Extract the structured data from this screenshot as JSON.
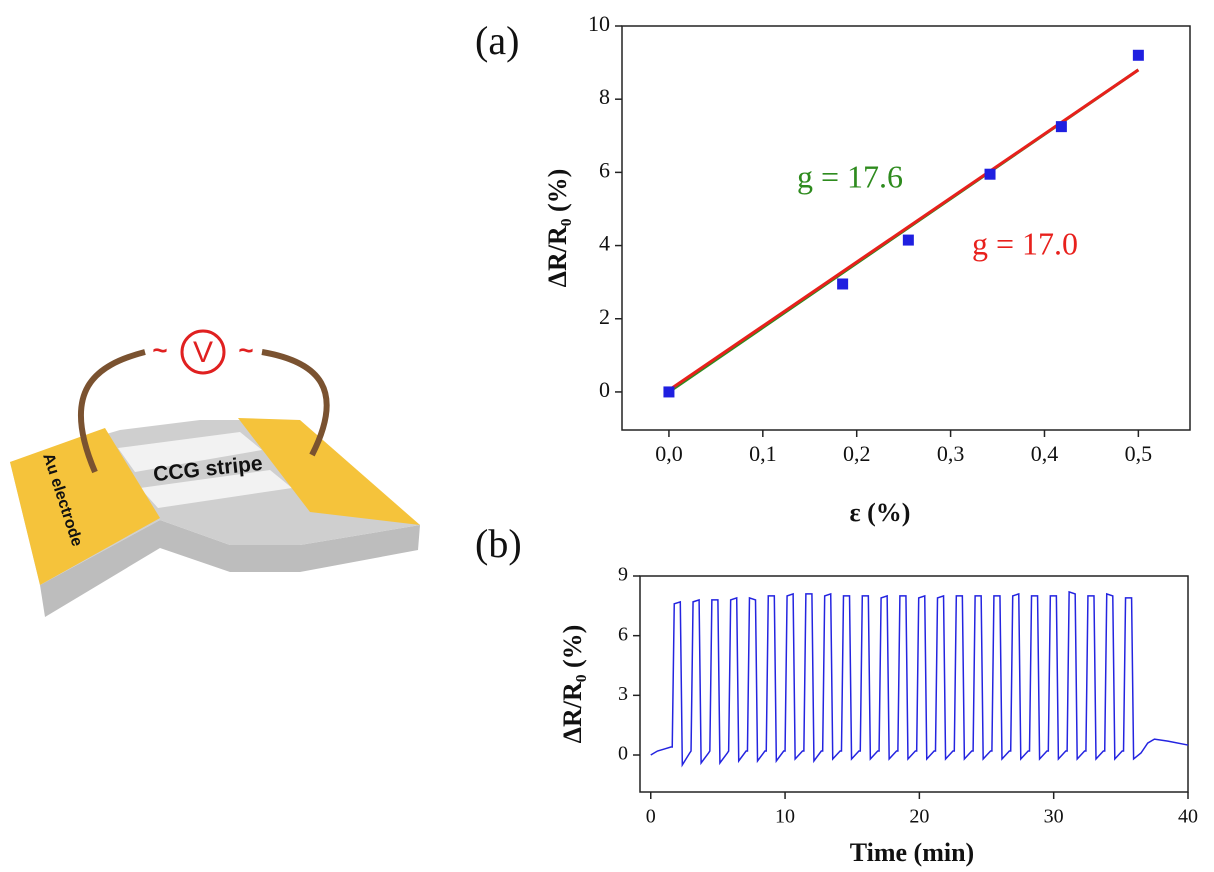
{
  "diagram": {
    "tilde_left": "~",
    "meter": "V",
    "tilde_right": "~",
    "electrode": "Au electrode",
    "stripe": "CCG stripe"
  },
  "chart_data": [
    {
      "type": "scatter",
      "panel_label": "(a)",
      "xlabel": "ε (%)",
      "ylabel": "ΔR/R₀ (%)",
      "x": [
        0,
        0.185,
        0.255,
        0.342,
        0.418,
        0.5
      ],
      "series": [
        {
          "color": "#1f1fe0",
          "values": [
            0,
            2.95,
            4.15,
            5.95,
            7.25,
            9.2
          ]
        }
      ],
      "fits": [
        {
          "color": "#2e8b1e",
          "x": [
            0,
            0.5
          ],
          "values": [
            0,
            8.8
          ]
        },
        {
          "color": "#e8201c",
          "x": [
            0,
            0.5
          ],
          "values": [
            0.05,
            8.8
          ]
        }
      ],
      "annotations": [
        {
          "text": "g = 17.6",
          "color": "#2e8b1e"
        },
        {
          "text": "g = 17.0",
          "color": "#e8201c"
        }
      ],
      "xlim": [
        -0.05,
        0.555
      ],
      "ylim": [
        -1.04,
        10
      ],
      "xticks": [
        {
          "value": 0,
          "label": "0,0"
        },
        {
          "value": 0.1,
          "label": "0,1"
        },
        {
          "value": 0.2,
          "label": "0,2"
        },
        {
          "value": 0.3,
          "label": "0,3"
        },
        {
          "value": 0.4,
          "label": "0,4"
        },
        {
          "value": 0.5,
          "label": "0,5"
        }
      ],
      "yticks": [
        0,
        2,
        4,
        6,
        8,
        10
      ]
    },
    {
      "type": "line",
      "panel_label": "(b)",
      "xlabel": "Time (min)",
      "ylabel": "ΔR/R₀ (%)",
      "x": [
        0,
        0.5,
        1.0,
        1.5,
        1.6,
        1.75,
        2.2,
        2.35,
        2.9,
        3.0,
        3.15,
        3.6,
        3.75,
        4.3,
        4.4,
        4.55,
        5.0,
        5.15,
        5.7,
        5.8,
        5.95,
        6.4,
        6.55,
        7.1,
        7.2,
        7.35,
        7.8,
        7.95,
        8.5,
        8.6,
        8.75,
        9.2,
        9.35,
        9.9,
        10.0,
        10.15,
        10.6,
        10.75,
        11.3,
        11.4,
        11.55,
        12.0,
        12.15,
        12.7,
        12.8,
        12.95,
        13.4,
        13.55,
        14.1,
        14.2,
        14.35,
        14.8,
        14.95,
        15.5,
        15.6,
        15.75,
        16.2,
        16.35,
        16.9,
        17.0,
        17.15,
        17.6,
        17.75,
        18.3,
        18.4,
        18.55,
        19.0,
        19.15,
        19.7,
        19.8,
        19.95,
        20.4,
        20.55,
        21.1,
        21.2,
        21.35,
        21.8,
        21.95,
        22.5,
        22.6,
        22.75,
        23.2,
        23.35,
        23.9,
        24.0,
        24.15,
        24.6,
        24.75,
        25.3,
        25.4,
        25.55,
        26.0,
        26.15,
        26.7,
        26.8,
        26.95,
        27.4,
        27.55,
        28.1,
        28.2,
        28.35,
        28.8,
        28.95,
        29.5,
        29.6,
        29.75,
        30.2,
        30.35,
        30.9,
        31.0,
        31.15,
        31.6,
        31.75,
        32.3,
        32.4,
        32.55,
        33.0,
        33.15,
        33.7,
        33.8,
        33.95,
        34.4,
        34.55,
        35.1,
        35.2,
        35.35,
        35.8,
        35.95,
        36.5,
        37.0,
        37.5,
        38.5,
        40
      ],
      "series": [
        {
          "color": "#2424e0",
          "values": [
            0,
            0.2,
            0.3,
            0.4,
            0.4,
            7.6,
            7.7,
            -0.5,
            0.1,
            0.2,
            7.7,
            7.8,
            -0.4,
            0.1,
            0.2,
            7.8,
            7.8,
            -0.4,
            0.1,
            0.2,
            7.8,
            7.9,
            -0.3,
            0.2,
            0.2,
            7.9,
            7.8,
            -0.3,
            0.2,
            0.2,
            8.0,
            8.0,
            -0.3,
            0.2,
            0.2,
            8.0,
            8.1,
            -0.2,
            0.2,
            0.2,
            8.1,
            8.1,
            -0.3,
            0.2,
            0.2,
            8.0,
            8.1,
            -0.2,
            0.2,
            0.2,
            8.0,
            8.0,
            -0.2,
            0.2,
            0.2,
            8.0,
            8.0,
            -0.2,
            0.2,
            0.2,
            7.9,
            8.0,
            -0.2,
            0.2,
            0.2,
            8.0,
            8.0,
            -0.2,
            0.2,
            0.2,
            7.9,
            8.0,
            -0.2,
            0.2,
            0.2,
            7.9,
            8.0,
            -0.2,
            0.2,
            0.2,
            8.0,
            8.0,
            -0.2,
            0.2,
            0.2,
            8.0,
            8.0,
            -0.2,
            0.2,
            0.2,
            8.0,
            8.0,
            -0.2,
            0.2,
            0.2,
            8.0,
            8.1,
            -0.2,
            0.2,
            0.2,
            8.0,
            8.0,
            -0.2,
            0.2,
            0.2,
            8.0,
            8.0,
            -0.2,
            0.2,
            0.2,
            8.2,
            8.1,
            -0.2,
            0.2,
            0.2,
            8.0,
            8.0,
            -0.2,
            0.2,
            0.2,
            8.1,
            8.0,
            -0.2,
            0.2,
            0.2,
            7.9,
            7.9,
            -0.2,
            0.1,
            0.6,
            0.8,
            0.7,
            0.5
          ]
        }
      ],
      "xlim": [
        -0.8,
        40
      ],
      "ylim": [
        -1.86,
        9
      ],
      "xticks": [
        0,
        10,
        20,
        30,
        40
      ],
      "yticks": [
        0,
        3,
        6,
        9
      ]
    }
  ]
}
